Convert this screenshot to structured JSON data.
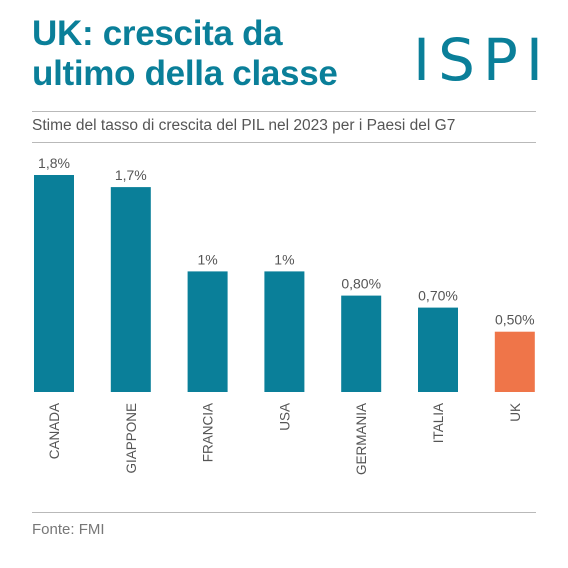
{
  "header": {
    "title_line1": "UK: crescita da",
    "title_line2": "ultimo della classe",
    "logo": "ISPI"
  },
  "subtitle": "Stime del tasso di crescita del PIL nel 2023 per i Paesi del G7",
  "source": "Fonte: FMI",
  "colors": {
    "bar": "#0a7f99",
    "highlight": "#ef7549",
    "title": "#0a7f99"
  },
  "chart_data": {
    "type": "bar",
    "title": "UK: crescita da ultimo della classe",
    "subtitle": "Stime del tasso di crescita del PIL nel 2023 per i Paesi del G7",
    "categories": [
      "CANADA",
      "GIAPPONE",
      "FRANCIA",
      "USA",
      "GERMANIA",
      "ITALIA",
      "UK"
    ],
    "values": [
      1.8,
      1.7,
      1.0,
      1.0,
      0.8,
      0.7,
      0.5
    ],
    "data_labels": [
      "1,8%",
      "1,7%",
      "1%",
      "1%",
      "0,80%",
      "0,70%",
      "0,50%"
    ],
    "highlight_category": "UK",
    "ylim": [
      0,
      1.8
    ],
    "grid": false,
    "legend": "none",
    "xlabel": "",
    "ylabel": ""
  }
}
